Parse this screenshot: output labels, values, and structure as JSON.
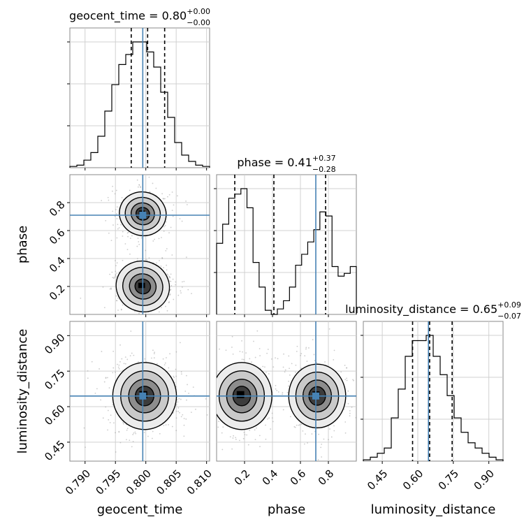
{
  "chart_data": {
    "type": "corner",
    "parameters": [
      "geocent_time",
      "phase",
      "luminosity_distance"
    ],
    "axis_labels": {
      "geocent_time": "geocent_time",
      "phase": "phase",
      "luminosity_distance": "luminosity_distance"
    },
    "ranges": {
      "geocent_time": [
        0.7875,
        0.8105
      ],
      "phase": [
        0.0,
        1.0
      ],
      "luminosity_distance": [
        0.37,
        0.96
      ]
    },
    "ticks": {
      "geocent_time": [
        "0.790",
        "0.795",
        "0.800",
        "0.805",
        "0.810"
      ],
      "phase": [
        "0.2",
        "0.4",
        "0.6",
        "0.8"
      ],
      "luminosity_distance": [
        "0.45",
        "0.60",
        "0.75",
        "0.90"
      ]
    },
    "titles": {
      "geocent_time": {
        "text": "geocent_time = 0.80",
        "plus": "+0.00",
        "minus": "−0.00"
      },
      "phase": {
        "text": "phase = 0.41",
        "plus": "+0.37",
        "minus": "−0.28"
      },
      "luminosity_distance": {
        "text": "luminosity_distance = 0.65",
        "plus": "+0.09",
        "minus": "−0.07"
      }
    },
    "truths": {
      "geocent_time": 0.7995,
      "phase": 0.71,
      "luminosity_distance": 0.645
    },
    "quantiles": {
      "geocent_time": [
        0.7976,
        0.8003,
        0.8031
      ],
      "phase": [
        0.13,
        0.41,
        0.78
      ],
      "luminosity_distance": [
        0.578,
        0.65,
        0.745
      ]
    },
    "histograms": {
      "geocent_time": [
        0.01,
        0.02,
        0.06,
        0.12,
        0.25,
        0.45,
        0.66,
        0.82,
        0.9,
        1.0,
        1.0,
        0.92,
        0.8,
        0.6,
        0.4,
        0.2,
        0.1,
        0.05,
        0.02,
        0.01
      ],
      "phase": [
        0.52,
        0.66,
        0.85,
        0.88,
        0.92,
        0.78,
        0.38,
        0.2,
        0.03,
        0.0,
        0.04,
        0.1,
        0.2,
        0.36,
        0.44,
        0.53,
        0.62,
        0.75,
        0.72,
        0.35,
        0.28,
        0.3,
        0.35
      ],
      "luminosity_distance": [
        0.01,
        0.03,
        0.06,
        0.1,
        0.33,
        0.55,
        0.8,
        0.92,
        0.92,
        0.96,
        0.8,
        0.66,
        0.5,
        0.33,
        0.22,
        0.14,
        0.1,
        0.06,
        0.03,
        0.01
      ]
    },
    "grid": true
  }
}
